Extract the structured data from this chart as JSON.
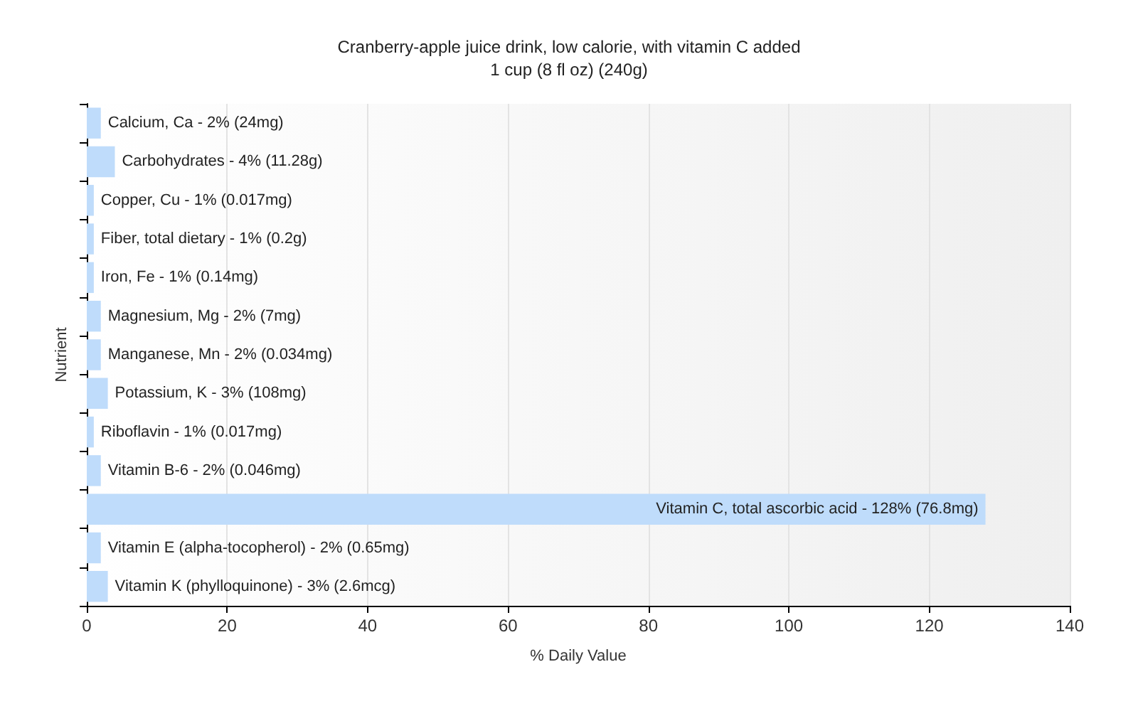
{
  "chart_data": {
    "type": "bar",
    "orientation": "horizontal",
    "title": "Cranberry-apple juice drink, low calorie, with vitamin C added",
    "subtitle": "1 cup (8 fl oz) (240g)",
    "xlabel": "% Daily Value",
    "ylabel": "Nutrient",
    "categories": [
      "Calcium, Ca - 2% (24mg)",
      "Carbohydrates - 4% (11.28g)",
      "Copper, Cu - 1% (0.017mg)",
      "Fiber, total dietary - 1% (0.2g)",
      "Iron, Fe - 1% (0.14mg)",
      "Magnesium, Mg - 2% (7mg)",
      "Manganese, Mn - 2% (0.034mg)",
      "Potassium, K - 3% (108mg)",
      "Riboflavin - 1% (0.017mg)",
      "Vitamin B-6 - 2% (0.046mg)",
      "Vitamin C, total ascorbic acid - 128% (76.8mg)",
      "Vitamin E (alpha-tocopherol) - 2% (0.65mg)",
      "Vitamin K (phylloquinone) - 3% (2.6mcg)"
    ],
    "values": [
      2,
      4,
      1,
      1,
      1,
      2,
      2,
      3,
      1,
      2,
      128,
      2,
      3
    ],
    "color": "#bfdcfb",
    "xlim": [
      0,
      140
    ],
    "xticks": [
      0,
      20,
      40,
      60,
      80,
      100,
      120,
      140
    ],
    "grid": "x",
    "tick_labels": "x"
  }
}
